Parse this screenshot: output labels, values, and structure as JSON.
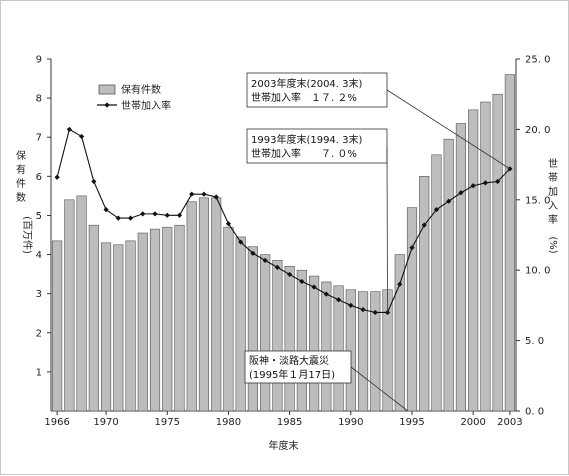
{
  "chart_data": {
    "type": "bar",
    "title": "",
    "xlabel": "年度末",
    "ylabel_left": [
      "保",
      "有",
      "件",
      "数",
      "(百万件)"
    ],
    "ylabel_right": [
      "世",
      "帯",
      "加",
      "入",
      "率",
      "(%)"
    ],
    "y_left_range": [
      0,
      9
    ],
    "y_right_range": [
      0,
      25
    ],
    "y_left_ticks": [
      "1",
      "2",
      "3",
      "4",
      "5",
      "6",
      "7",
      "8",
      "9"
    ],
    "y_right_ticks": [
      "0. 0",
      "5. 0",
      "10. 0",
      "15. 0",
      "20. 0",
      "25. 0"
    ],
    "x_tick_labels": [
      "1966",
      "1970",
      "1975",
      "1980",
      "1985",
      "1990",
      "1995",
      "2000",
      "2003"
    ],
    "x_ticks": [
      1966,
      1970,
      1975,
      1980,
      1985,
      1990,
      1995,
      2000,
      2003
    ],
    "legend": {
      "position": "top-left",
      "bar_label": "保有件数",
      "line_label": "世帯加入率"
    },
    "years": [
      1966,
      1967,
      1968,
      1969,
      1970,
      1971,
      1972,
      1973,
      1974,
      1975,
      1976,
      1977,
      1978,
      1979,
      1980,
      1981,
      1982,
      1983,
      1984,
      1985,
      1986,
      1987,
      1988,
      1989,
      1990,
      1991,
      1992,
      1993,
      1994,
      1995,
      1996,
      1997,
      1998,
      1999,
      2000,
      2001,
      2002,
      2003
    ],
    "series": [
      {
        "name": "保有件数",
        "axis": "left",
        "values": [
          4.35,
          5.4,
          5.5,
          4.75,
          4.3,
          4.25,
          4.35,
          4.55,
          4.65,
          4.7,
          4.75,
          5.35,
          5.45,
          5.45,
          4.7,
          4.45,
          4.2,
          4.0,
          3.85,
          3.7,
          3.6,
          3.45,
          3.3,
          3.2,
          3.1,
          3.05,
          3.05,
          3.1,
          4.0,
          5.2,
          6.0,
          6.55,
          6.95,
          7.35,
          7.7,
          7.9,
          8.1,
          8.6
        ]
      },
      {
        "name": "世帯加入率",
        "axis": "right",
        "values": [
          16.6,
          20.0,
          19.5,
          16.3,
          14.3,
          13.7,
          13.7,
          14.0,
          14.0,
          13.9,
          13.9,
          15.4,
          15.4,
          15.2,
          13.3,
          12.0,
          11.2,
          10.7,
          10.2,
          9.7,
          9.2,
          8.8,
          8.3,
          7.9,
          7.5,
          7.2,
          7.0,
          7.0,
          9.0,
          11.6,
          13.2,
          14.3,
          14.9,
          15.5,
          16.0,
          16.2,
          16.3,
          17.2
        ]
      }
    ],
    "annotations": [
      {
        "lines": [
          "2003年度末(2004. 3末)",
          "世帯加入率　１７. ２%"
        ],
        "target_year": 2003
      },
      {
        "lines": [
          "1993年度末(1994. 3末)",
          "世帯加入率　　７. ０%"
        ],
        "target_year": 1993
      },
      {
        "lines": [
          "阪神・淡路大震災",
          "(1995年１月17日)"
        ],
        "target_year": 1995
      }
    ],
    "colors": {
      "bar_fill": "#bdbdbd",
      "bar_stroke": "#555555",
      "line": "#111111"
    }
  }
}
